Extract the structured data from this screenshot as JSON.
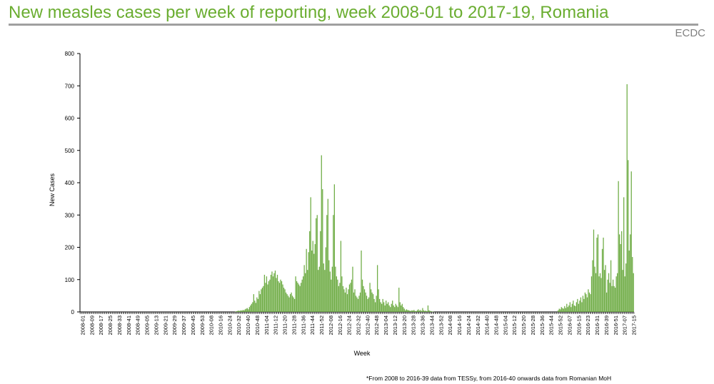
{
  "header": {
    "title": "New measles cases per week of reporting, week 2008-01 to 2017-19, Romania",
    "source": "ECDC"
  },
  "footnote": "*From 2008 to 2016-39 data from TESSy,  from 2016-40 onwards data from Romanian MoH",
  "colors": {
    "bar": "#70ad47",
    "title": "#6aad30"
  },
  "chart_data": {
    "type": "bar",
    "title": "New measles cases per week of reporting, week 2008-01 to 2017-19, Romania",
    "xlabel": "Week",
    "ylabel": "New Cases",
    "ylim": [
      0,
      800
    ],
    "yticks": [
      0,
      100,
      200,
      300,
      400,
      500,
      600,
      700,
      800
    ],
    "grid": false,
    "legend": "none",
    "xtick_labels": [
      "2008-01",
      "2008-09",
      "2008-17",
      "2008-25",
      "2008-33",
      "2008-41",
      "2008-49",
      "2009-05",
      "2009-13",
      "2009-21",
      "2009-29",
      "2009-37",
      "2009-45",
      "2009-53",
      "2010-08",
      "2010-16",
      "2010-24",
      "2010-32",
      "2010-40",
      "2010-48",
      "2011-04",
      "2011-12",
      "2011-20",
      "2011-28",
      "2011-36",
      "2011-44",
      "2011-52",
      "2012-08",
      "2012-16",
      "2012-24",
      "2012-32",
      "2012-40",
      "2012-48",
      "2013-04",
      "2013-12",
      "2013-20",
      "2013-28",
      "2013-36",
      "2013-44",
      "2013-52",
      "2014-08",
      "2014-16",
      "2014-24",
      "2014-32",
      "2014-40",
      "2014-48",
      "2015-04",
      "2015-12",
      "2015-20",
      "2015-28",
      "2015-36",
      "2015-44",
      "2015-52",
      "2016-07",
      "2016-15",
      "2016-23",
      "2016-31",
      "2016-39",
      "2016-51",
      "2017-07",
      "2017-15"
    ],
    "values": [
      0,
      0,
      0,
      0,
      0,
      0,
      0,
      0,
      0,
      0,
      0,
      0,
      0,
      0,
      0,
      0,
      0,
      0,
      0,
      0,
      0,
      0,
      0,
      0,
      0,
      0,
      0,
      0,
      0,
      0,
      0,
      0,
      0,
      0,
      0,
      0,
      0,
      0,
      0,
      0,
      0,
      0,
      0,
      0,
      0,
      0,
      0,
      0,
      0,
      0,
      0,
      0,
      0,
      0,
      0,
      0,
      0,
      0,
      0,
      0,
      0,
      0,
      0,
      0,
      0,
      0,
      0,
      0,
      0,
      0,
      0,
      0,
      0,
      0,
      0,
      0,
      0,
      0,
      0,
      0,
      0,
      0,
      0,
      0,
      0,
      0,
      0,
      0,
      0,
      0,
      0,
      0,
      0,
      0,
      0,
      0,
      0,
      0,
      0,
      0,
      0,
      0,
      0,
      0,
      0,
      0,
      0,
      0,
      0,
      0,
      0,
      0,
      0,
      0,
      0,
      0,
      0,
      0,
      0,
      0,
      0,
      0,
      0,
      0,
      0,
      0,
      0,
      0,
      0,
      0,
      0,
      0,
      0,
      0,
      0,
      0,
      0,
      0,
      0,
      0,
      0,
      0,
      0,
      0,
      1,
      2,
      3,
      4,
      3,
      5,
      4,
      6,
      5,
      8,
      10,
      12,
      8,
      15,
      20,
      25,
      30,
      55,
      35,
      28,
      45,
      40,
      65,
      55,
      70,
      75,
      80,
      115,
      90,
      110,
      85,
      95,
      100,
      115,
      125,
      110,
      120,
      128,
      105,
      115,
      95,
      90,
      100,
      95,
      85,
      75,
      70,
      60,
      55,
      50,
      45,
      55,
      60,
      50,
      45,
      40,
      110,
      95,
      90,
      85,
      80,
      90,
      100,
      110,
      145,
      120,
      195,
      130,
      185,
      250,
      355,
      190,
      220,
      180,
      210,
      290,
      300,
      130,
      140,
      250,
      485,
      380,
      150,
      130,
      200,
      300,
      350,
      160,
      125,
      100,
      140,
      300,
      395,
      140,
      110,
      100,
      80,
      90,
      220,
      110,
      80,
      70,
      60,
      75,
      55,
      70,
      85,
      90,
      100,
      140,
      60,
      70,
      50,
      45,
      40,
      50,
      60,
      190,
      100,
      80,
      70,
      60,
      50,
      40,
      45,
      90,
      70,
      60,
      55,
      40,
      30,
      50,
      145,
      70,
      40,
      30,
      25,
      40,
      30,
      20,
      35,
      25,
      30,
      20,
      15,
      25,
      35,
      20,
      15,
      25,
      20,
      15,
      75,
      30,
      20,
      25,
      15,
      10,
      5,
      8,
      6,
      5,
      4,
      3,
      5,
      4,
      6,
      3,
      2,
      5,
      8,
      4,
      6,
      3,
      12,
      5,
      3,
      4,
      2,
      20,
      5,
      3,
      2,
      1,
      1,
      0,
      0,
      0,
      0,
      0,
      0,
      0,
      0,
      0,
      0,
      0,
      0,
      0,
      0,
      0,
      0,
      0,
      0,
      0,
      0,
      0,
      0,
      0,
      0,
      0,
      0,
      0,
      0,
      0,
      0,
      0,
      0,
      0,
      0,
      0,
      0,
      0,
      0,
      0,
      0,
      0,
      0,
      0,
      0,
      0,
      0,
      0,
      0,
      0,
      0,
      0,
      0,
      0,
      0,
      0,
      0,
      0,
      0,
      0,
      0,
      0,
      0,
      0,
      0,
      0,
      0,
      0,
      0,
      0,
      0,
      0,
      0,
      0,
      0,
      0,
      0,
      0,
      0,
      0,
      0,
      0,
      0,
      0,
      0,
      0,
      0,
      0,
      0,
      0,
      0,
      0,
      0,
      0,
      0,
      0,
      0,
      0,
      0,
      0,
      0,
      0,
      0,
      0,
      0,
      0,
      0,
      0,
      0,
      0,
      0,
      0,
      0,
      0,
      0,
      0,
      5,
      10,
      8,
      15,
      12,
      10,
      18,
      12,
      25,
      15,
      20,
      30,
      15,
      25,
      35,
      20,
      18,
      30,
      40,
      25,
      35,
      45,
      30,
      50,
      40,
      60,
      55,
      45,
      70,
      60,
      55,
      110,
      160,
      255,
      140,
      120,
      230,
      240,
      110,
      120,
      105,
      195,
      230,
      130,
      145,
      60,
      100,
      120,
      90,
      160,
      80,
      100,
      80,
      75,
      110,
      120,
      405,
      240,
      210,
      250,
      130,
      355,
      110,
      150,
      705,
      470,
      190,
      240,
      435,
      170,
      120
    ]
  }
}
